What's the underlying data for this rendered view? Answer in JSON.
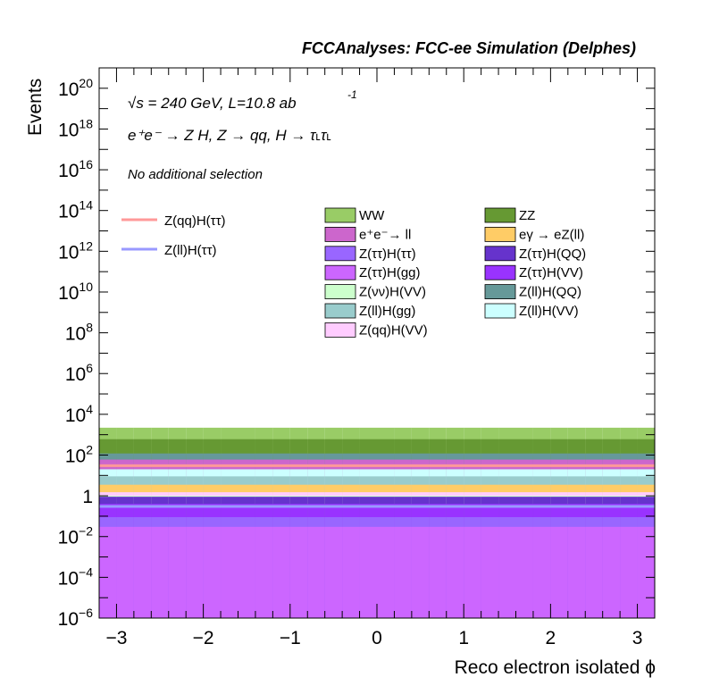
{
  "chart_data": {
    "type": "area",
    "title": "FCCAnalyses: FCC-ee Simulation (Delphes)",
    "xlabel": "Reco electron isolated ϕ",
    "ylabel": "Events",
    "yscale": "log",
    "xlim": [
      -3.2,
      3.2
    ],
    "ylim": [
      1e-06,
      1e+21
    ],
    "x_ticks": [
      {
        "value": -3,
        "label": "−3"
      },
      {
        "value": -2,
        "label": "−2"
      },
      {
        "value": -1,
        "label": "−1"
      },
      {
        "value": 0,
        "label": "0"
      },
      {
        "value": 1,
        "label": "1"
      },
      {
        "value": 2,
        "label": "2"
      },
      {
        "value": 3,
        "label": "3"
      }
    ],
    "y_ticks": [
      {
        "value": 1e-06,
        "base": "10",
        "exp": "−6"
      },
      {
        "value": 0.0001,
        "base": "10",
        "exp": "−4"
      },
      {
        "value": 0.01,
        "base": "10",
        "exp": "−2"
      },
      {
        "value": 1,
        "base": "1",
        "exp": ""
      },
      {
        "value": 100.0,
        "base": "10",
        "exp": "2"
      },
      {
        "value": 10000.0,
        "base": "10",
        "exp": "4"
      },
      {
        "value": 1000000.0,
        "base": "10",
        "exp": "6"
      },
      {
        "value": 100000000.0,
        "base": "10",
        "exp": "8"
      },
      {
        "value": 10000000000.0,
        "base": "10",
        "exp": "10"
      },
      {
        "value": 1000000000000.0,
        "base": "10",
        "exp": "12"
      },
      {
        "value": 100000000000000.0,
        "base": "10",
        "exp": "14"
      },
      {
        "value": 1e+16,
        "base": "10",
        "exp": "16"
      },
      {
        "value": 1e+18,
        "base": "10",
        "exp": "18"
      },
      {
        "value": 1e+20,
        "base": "10",
        "exp": "20"
      }
    ],
    "annotations": {
      "energy": "√s = 240 GeV, L=10.8 ab",
      "energy_sup": "-1",
      "process": "e⁺e⁻ → Z H, Z → qq, H → τ˪τ˪",
      "selection": "No additional selection"
    },
    "bins": 32,
    "stack_bottom_to_top": [
      "Z(ττ)H(gg)",
      "Z(ττ)H(ττ)",
      "Z(ττ)H(VV)",
      "Z(ττ)H(QQ)",
      "Z(νν)H(VV)",
      "Z(qq)H(VV)",
      "eγ → eZ(ll)",
      "Z(ll)H(gg)",
      "Z(ll)H(VV)",
      "e⁺e⁻→ ll",
      "Z(ll)H(QQ)",
      "ZZ",
      "WW"
    ],
    "stack_tops": {
      "Z(ττ)H(gg)": [
        0.03,
        0.03,
        0.03,
        0.03,
        0.03,
        0.03,
        0.03,
        0.03,
        0.03,
        0.03,
        0.03,
        0.03,
        0.03,
        0.03,
        0.03,
        0.03,
        0.03,
        0.03,
        0.03,
        0.03,
        0.03,
        0.03,
        0.03,
        0.03,
        0.03,
        0.03,
        0.03,
        0.03,
        0.03,
        0.03,
        0.03,
        0.03
      ],
      "Z(ττ)H(ττ)": [
        0.09,
        0.09,
        0.09,
        0.09,
        0.09,
        0.09,
        0.09,
        0.09,
        0.09,
        0.09,
        0.09,
        0.09,
        0.09,
        0.09,
        0.09,
        0.09,
        0.09,
        0.09,
        0.09,
        0.09,
        0.09,
        0.09,
        0.09,
        0.09,
        0.09,
        0.09,
        0.09,
        0.09,
        0.09,
        0.09,
        0.09,
        0.09
      ],
      "Z(ττ)H(VV)": [
        0.4,
        0.4,
        0.4,
        0.4,
        0.4,
        0.4,
        0.4,
        0.4,
        0.4,
        0.4,
        0.4,
        0.4,
        0.4,
        0.4,
        0.4,
        0.4,
        0.4,
        0.4,
        0.4,
        0.4,
        0.4,
        0.4,
        0.4,
        0.4,
        0.4,
        0.4,
        0.4,
        0.4,
        0.4,
        0.4,
        0.4,
        0.4
      ],
      "Z(ττ)H(QQ)": [
        0.9,
        0.9,
        0.9,
        0.9,
        0.9,
        0.9,
        0.9,
        0.9,
        0.9,
        0.9,
        0.9,
        0.9,
        0.9,
        0.9,
        0.9,
        0.9,
        0.9,
        0.9,
        0.9,
        0.9,
        0.9,
        0.9,
        0.9,
        0.9,
        0.9,
        0.9,
        0.9,
        0.9,
        0.9,
        0.9,
        0.9,
        0.9
      ],
      "Z(νν)H(VV)": [
        1.0,
        1.0,
        1.0,
        1.0,
        1.0,
        1.0,
        1.0,
        1.0,
        1.0,
        1.0,
        1.0,
        1.0,
        1.0,
        1.0,
        1.0,
        1.0,
        1.0,
        1.0,
        1.0,
        1.0,
        1.0,
        1.0,
        1.0,
        1.0,
        1.0,
        1.0,
        1.0,
        1.0,
        1.0,
        1.0,
        1.0,
        1.0
      ],
      "Z(qq)H(VV)": [
        1.5,
        1.5,
        1.5,
        1.5,
        1.5,
        1.5,
        1.5,
        1.5,
        1.5,
        1.5,
        1.5,
        1.5,
        1.5,
        1.5,
        1.5,
        1.5,
        1.5,
        1.5,
        1.5,
        1.5,
        1.5,
        1.5,
        1.5,
        1.5,
        1.5,
        1.5,
        1.5,
        1.5,
        1.5,
        1.5,
        1.5,
        1.5
      ],
      "eγ → eZ(ll)": [
        3.5,
        3.5,
        3.5,
        3.5,
        3.5,
        3.5,
        3.5,
        3.5,
        3.5,
        3.5,
        3.5,
        3.5,
        3.5,
        3.5,
        3.5,
        3.5,
        3.5,
        3.5,
        3.5,
        3.5,
        3.5,
        3.5,
        3.5,
        3.5,
        3.5,
        3.5,
        3.5,
        3.5,
        3.5,
        3.5,
        3.5,
        3.5
      ],
      "Z(ll)H(gg)": [
        9,
        9,
        9,
        9,
        9,
        9,
        9,
        9,
        9,
        9,
        9,
        9,
        9,
        9,
        9,
        9,
        9,
        9,
        9,
        9,
        9,
        9,
        9,
        9,
        9,
        9,
        9,
        9,
        9,
        9,
        9,
        9
      ],
      "Z(ll)H(VV)": [
        20,
        20,
        20,
        20,
        20,
        20,
        20,
        20,
        20,
        20,
        20,
        20,
        20,
        20,
        20,
        20,
        20,
        20,
        20,
        20,
        20,
        20,
        20,
        20,
        20,
        20,
        20,
        20,
        20,
        20,
        20,
        20
      ],
      "e⁺e⁻→ ll": [
        60,
        60,
        60,
        60,
        60,
        60,
        60,
        60,
        60,
        60,
        60,
        60,
        60,
        60,
        60,
        60,
        60,
        60,
        60,
        60,
        60,
        60,
        60,
        60,
        60,
        60,
        60,
        60,
        60,
        60,
        60,
        60
      ],
      "Z(ll)H(QQ)": [
        120,
        120,
        120,
        120,
        120,
        120,
        120,
        120,
        120,
        120,
        120,
        120,
        120,
        120,
        120,
        120,
        120,
        120,
        120,
        120,
        120,
        120,
        120,
        120,
        120,
        120,
        120,
        120,
        120,
        120,
        120,
        120
      ],
      "ZZ": [
        600,
        600,
        600,
        600,
        600,
        600,
        600,
        600,
        600,
        600,
        600,
        600,
        600,
        600,
        600,
        600,
        600,
        600,
        600,
        600,
        600,
        600,
        600,
        600,
        600,
        600,
        600,
        600,
        600,
        600,
        600,
        600
      ],
      "WW": [
        2200,
        2200,
        2200,
        2200,
        2200,
        2200,
        2200,
        2200,
        2200,
        2200,
        2200,
        2200,
        2200,
        2200,
        2200,
        2200,
        2200,
        2200,
        2200,
        2200,
        2200,
        2200,
        2200,
        2200,
        2200,
        2200,
        2200,
        2200,
        2200,
        2200,
        2200,
        2200
      ]
    },
    "lines": [
      {
        "name": "Z(qq)H(ττ)",
        "color": "#ff9999",
        "value": 30
      },
      {
        "name": "Z(ll)H(ττ)",
        "color": "#9999ff",
        "value": 0.3
      }
    ],
    "legend": [
      {
        "name": "WW",
        "color": "#99cc66"
      },
      {
        "name": "ZZ",
        "color": "#669933"
      },
      {
        "name": "e⁺e⁻→ ll",
        "color": "#cc66cc"
      },
      {
        "name": "eγ → eZ(ll)",
        "color": "#ffcc66"
      },
      {
        "name": "Z(ττ)H(ττ)",
        "color": "#9966ff"
      },
      {
        "name": "Z(ττ)H(QQ)",
        "color": "#6633cc"
      },
      {
        "name": "Z(ττ)H(gg)",
        "color": "#cc66ff"
      },
      {
        "name": "Z(ττ)H(VV)",
        "color": "#9933ff"
      },
      {
        "name": "Z(νν)H(VV)",
        "color": "#ccffcc"
      },
      {
        "name": "Z(ll)H(QQ)",
        "color": "#669999"
      },
      {
        "name": "Z(ll)H(gg)",
        "color": "#99cccc"
      },
      {
        "name": "Z(ll)H(VV)",
        "color": "#ccffff"
      },
      {
        "name": "Z(qq)H(VV)",
        "color": "#ffccff"
      }
    ],
    "grid": false
  }
}
